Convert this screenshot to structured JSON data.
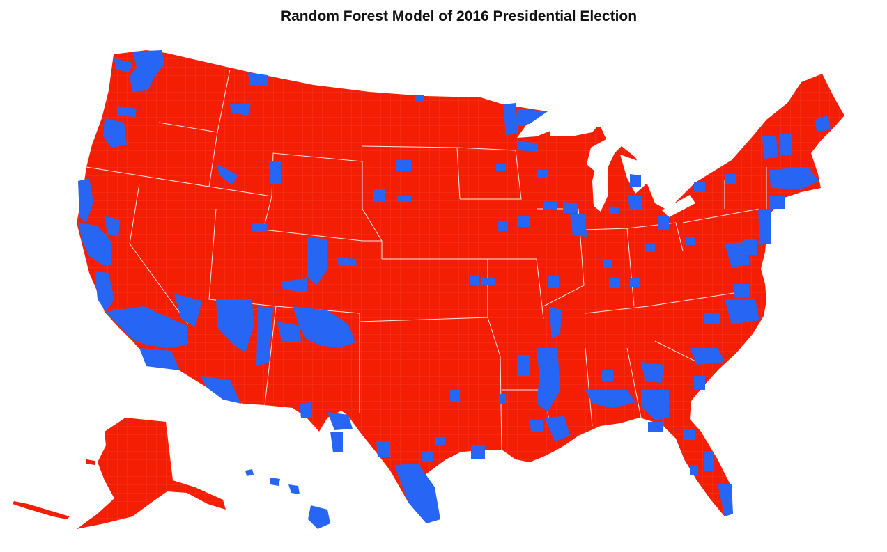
{
  "title": "Random Forest Model of 2016 Presidential Election",
  "colors": {
    "background": "#ffffff",
    "republican_predicted": "#f41e05",
    "democratic_predicted": "#2766f4",
    "county_border": "#ff6f5e",
    "state_border": "#ffffff"
  },
  "map": {
    "projection": "albers-usa",
    "regions_shown": [
      "Contiguous United States",
      "Alaska",
      "Hawaii"
    ],
    "level": "county",
    "dominant_prediction": "republican",
    "blue_counties_examples": [
      "King County, WA",
      "Los Angeles County, CA",
      "San Francisco Bay Area, CA",
      "Cook County, IL",
      "Miami-Dade County, FL",
      "Rio Grande Valley, TX",
      "Apache and Navajo Counties, AZ",
      "Mississippi Delta",
      "Black Belt, AL",
      "Boston area, MA",
      "Denver area, CO",
      "Twin Cities, MN",
      "Hawaii"
    ]
  }
}
